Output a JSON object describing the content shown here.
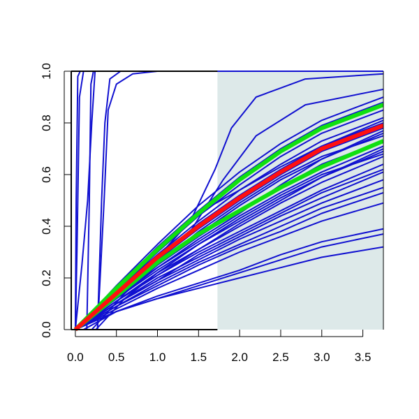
{
  "chart_data": {
    "type": "line",
    "title": "",
    "xlabel": "",
    "ylabel": "",
    "xlim": [
      -0.05,
      3.75
    ],
    "ylim": [
      0.0,
      1.0
    ],
    "x_ticks": [
      "0.0",
      "0.5",
      "1.0",
      "1.5",
      "2.0",
      "2.5",
      "3.0",
      "3.5"
    ],
    "y_ticks": [
      "0.0",
      "0.2",
      "0.4",
      "0.6",
      "0.8",
      "1.0"
    ],
    "grid": false,
    "legend": "none",
    "shaded_region": {
      "x_start": 1.73,
      "x_end": 3.75,
      "color": "#dde9e9"
    },
    "colors": {
      "individual": "#1010d0",
      "median": "#ff1010",
      "band": "#10e010"
    },
    "band_curves": {
      "description": "two green bounding curves and a red central curve",
      "lower": {
        "name": "",
        "points": [
          [
            0,
            0
          ],
          [
            0.5,
            0.13
          ],
          [
            1.0,
            0.26
          ],
          [
            1.5,
            0.37
          ],
          [
            2.0,
            0.46
          ],
          [
            2.5,
            0.55
          ],
          [
            3.0,
            0.63
          ],
          [
            3.75,
            0.73
          ]
        ]
      },
      "central": {
        "name": "",
        "points": [
          [
            0,
            0
          ],
          [
            0.5,
            0.14
          ],
          [
            1.0,
            0.28
          ],
          [
            1.5,
            0.4
          ],
          [
            2.0,
            0.51
          ],
          [
            2.5,
            0.61
          ],
          [
            3.0,
            0.7
          ],
          [
            3.75,
            0.79
          ]
        ]
      },
      "upper": {
        "name": "",
        "points": [
          [
            0,
            0
          ],
          [
            0.5,
            0.16
          ],
          [
            1.0,
            0.31
          ],
          [
            1.5,
            0.45
          ],
          [
            2.0,
            0.58
          ],
          [
            2.5,
            0.69
          ],
          [
            3.0,
            0.78
          ],
          [
            3.75,
            0.87
          ]
        ]
      }
    },
    "series": [
      {
        "points": [
          [
            0,
            0
          ],
          [
            0.01,
            0.5
          ],
          [
            0.03,
            0.98
          ],
          [
            0.06,
            1.0
          ],
          [
            3.75,
            1.0
          ]
        ]
      },
      {
        "points": [
          [
            0,
            0
          ],
          [
            0.02,
            0.3
          ],
          [
            0.05,
            0.9
          ],
          [
            0.1,
            1.0
          ],
          [
            3.75,
            1.0
          ]
        ]
      },
      {
        "points": [
          [
            0.14,
            0.0
          ],
          [
            0.17,
            0.5
          ],
          [
            0.19,
            0.95
          ],
          [
            0.22,
            1.0
          ],
          [
            3.75,
            1.0
          ]
        ]
      },
      {
        "points": [
          [
            0.0,
            0.0
          ],
          [
            0.08,
            0.25
          ],
          [
            0.15,
            0.5
          ],
          [
            0.2,
            0.8
          ],
          [
            0.24,
            1.0
          ],
          [
            3.75,
            1.0
          ]
        ]
      },
      {
        "points": [
          [
            0.27,
            0.0
          ],
          [
            0.32,
            0.5
          ],
          [
            0.36,
            0.8
          ],
          [
            0.42,
            0.97
          ],
          [
            0.55,
            1.0
          ],
          [
            3.75,
            1.0
          ]
        ]
      },
      {
        "points": [
          [
            0.27,
            0.0
          ],
          [
            0.35,
            0.5
          ],
          [
            0.4,
            0.85
          ],
          [
            0.5,
            0.95
          ],
          [
            0.7,
            0.99
          ],
          [
            1.0,
            1.0
          ],
          [
            3.75,
            1.0
          ]
        ]
      },
      {
        "points": [
          [
            0,
            0
          ],
          [
            0.5,
            0.14
          ],
          [
            1.0,
            0.28
          ],
          [
            1.4,
            0.42
          ],
          [
            1.7,
            0.62
          ],
          [
            1.9,
            0.78
          ],
          [
            2.2,
            0.9
          ],
          [
            2.8,
            0.97
          ],
          [
            3.75,
            0.99
          ]
        ]
      },
      {
        "points": [
          [
            0,
            0
          ],
          [
            0.5,
            0.13
          ],
          [
            1.0,
            0.26
          ],
          [
            1.4,
            0.38
          ],
          [
            1.8,
            0.58
          ],
          [
            2.2,
            0.75
          ],
          [
            2.8,
            0.87
          ],
          [
            3.75,
            0.93
          ]
        ]
      },
      {
        "points": [
          [
            0,
            0
          ],
          [
            0.5,
            0.17
          ],
          [
            1.0,
            0.33
          ],
          [
            1.5,
            0.48
          ],
          [
            2.0,
            0.61
          ],
          [
            2.5,
            0.72
          ],
          [
            3.0,
            0.81
          ],
          [
            3.75,
            0.9
          ]
        ]
      },
      {
        "points": [
          [
            0,
            0
          ],
          [
            0.5,
            0.16
          ],
          [
            1.0,
            0.32
          ],
          [
            1.5,
            0.46
          ],
          [
            2.0,
            0.59
          ],
          [
            2.5,
            0.7
          ],
          [
            3.0,
            0.79
          ],
          [
            3.75,
            0.88
          ]
        ]
      },
      {
        "points": [
          [
            0,
            0
          ],
          [
            0.5,
            0.15
          ],
          [
            1.0,
            0.3
          ],
          [
            1.5,
            0.44
          ],
          [
            2.0,
            0.56
          ],
          [
            2.5,
            0.67
          ],
          [
            3.0,
            0.76
          ],
          [
            3.75,
            0.85
          ]
        ]
      },
      {
        "points": [
          [
            0,
            0
          ],
          [
            0.5,
            0.15
          ],
          [
            1.0,
            0.29
          ],
          [
            1.5,
            0.42
          ],
          [
            2.0,
            0.54
          ],
          [
            2.5,
            0.64
          ],
          [
            3.0,
            0.73
          ],
          [
            3.75,
            0.82
          ]
        ]
      },
      {
        "points": [
          [
            0,
            0
          ],
          [
            0.5,
            0.14
          ],
          [
            1.0,
            0.28
          ],
          [
            1.5,
            0.41
          ],
          [
            2.0,
            0.52
          ],
          [
            2.5,
            0.62
          ],
          [
            3.0,
            0.71
          ],
          [
            3.75,
            0.8
          ]
        ]
      },
      {
        "points": [
          [
            0,
            0
          ],
          [
            0.5,
            0.14
          ],
          [
            1.0,
            0.27
          ],
          [
            1.5,
            0.39
          ],
          [
            2.0,
            0.5
          ],
          [
            2.5,
            0.6
          ],
          [
            3.0,
            0.69
          ],
          [
            3.75,
            0.78
          ]
        ]
      },
      {
        "points": [
          [
            0,
            0
          ],
          [
            0.5,
            0.13
          ],
          [
            1.0,
            0.26
          ],
          [
            1.5,
            0.37
          ],
          [
            2.0,
            0.48
          ],
          [
            2.5,
            0.58
          ],
          [
            3.0,
            0.66
          ],
          [
            3.75,
            0.76
          ]
        ]
      },
      {
        "points": [
          [
            0,
            0
          ],
          [
            0.5,
            0.13
          ],
          [
            1.0,
            0.25
          ],
          [
            1.5,
            0.36
          ],
          [
            2.0,
            0.46
          ],
          [
            2.5,
            0.55
          ],
          [
            3.0,
            0.64
          ],
          [
            3.75,
            0.73
          ]
        ]
      },
      {
        "points": [
          [
            0,
            0
          ],
          [
            0.5,
            0.12
          ],
          [
            1.0,
            0.24
          ],
          [
            1.5,
            0.34
          ],
          [
            2.0,
            0.44
          ],
          [
            2.5,
            0.53
          ],
          [
            3.0,
            0.61
          ],
          [
            3.75,
            0.71
          ]
        ]
      },
      {
        "points": [
          [
            0,
            0
          ],
          [
            0.5,
            0.12
          ],
          [
            1.0,
            0.23
          ],
          [
            1.5,
            0.33
          ],
          [
            2.0,
            0.42
          ],
          [
            2.5,
            0.51
          ],
          [
            3.0,
            0.59
          ],
          [
            3.75,
            0.69
          ]
        ]
      },
      {
        "points": [
          [
            0,
            0
          ],
          [
            0.5,
            0.11
          ],
          [
            1.0,
            0.22
          ],
          [
            1.5,
            0.31
          ],
          [
            2.0,
            0.4
          ],
          [
            2.5,
            0.49
          ],
          [
            3.0,
            0.57
          ],
          [
            3.75,
            0.67
          ]
        ]
      },
      {
        "points": [
          [
            0,
            0
          ],
          [
            0.5,
            0.11
          ],
          [
            1.0,
            0.21
          ],
          [
            1.5,
            0.3
          ],
          [
            2.0,
            0.38
          ],
          [
            2.5,
            0.46
          ],
          [
            3.0,
            0.54
          ],
          [
            3.75,
            0.64
          ]
        ]
      },
      {
        "points": [
          [
            0,
            0
          ],
          [
            0.5,
            0.1
          ],
          [
            1.0,
            0.2
          ],
          [
            1.5,
            0.28
          ],
          [
            2.0,
            0.36
          ],
          [
            2.5,
            0.44
          ],
          [
            3.0,
            0.51
          ],
          [
            3.75,
            0.61
          ]
        ]
      },
      {
        "points": [
          [
            0,
            0
          ],
          [
            0.5,
            0.1
          ],
          [
            1.0,
            0.19
          ],
          [
            1.5,
            0.27
          ],
          [
            2.0,
            0.35
          ],
          [
            2.5,
            0.42
          ],
          [
            3.0,
            0.49
          ],
          [
            3.75,
            0.58
          ]
        ]
      },
      {
        "points": [
          [
            0,
            0
          ],
          [
            0.5,
            0.09
          ],
          [
            1.0,
            0.18
          ],
          [
            1.5,
            0.26
          ],
          [
            2.0,
            0.33
          ],
          [
            2.5,
            0.4
          ],
          [
            3.0,
            0.47
          ],
          [
            3.75,
            0.55
          ]
        ]
      },
      {
        "points": [
          [
            0,
            0
          ],
          [
            0.5,
            0.09
          ],
          [
            1.0,
            0.17
          ],
          [
            1.5,
            0.25
          ],
          [
            2.0,
            0.32
          ],
          [
            2.5,
            0.38
          ],
          [
            3.0,
            0.45
          ],
          [
            3.75,
            0.53
          ]
        ]
      },
      {
        "points": [
          [
            0,
            0
          ],
          [
            0.5,
            0.08
          ],
          [
            1.0,
            0.16
          ],
          [
            1.5,
            0.23
          ],
          [
            2.0,
            0.3
          ],
          [
            2.5,
            0.36
          ],
          [
            3.0,
            0.42
          ],
          [
            3.75,
            0.49
          ]
        ]
      },
      {
        "points": [
          [
            0.1,
            0
          ],
          [
            0.5,
            0.07
          ],
          [
            1.0,
            0.12
          ],
          [
            1.5,
            0.16
          ],
          [
            2.0,
            0.2
          ],
          [
            2.5,
            0.24
          ],
          [
            3.0,
            0.28
          ],
          [
            3.75,
            0.32
          ]
        ]
      },
      {
        "points": [
          [
            0,
            0
          ],
          [
            0.5,
            0.07
          ],
          [
            1.0,
            0.12
          ],
          [
            1.5,
            0.17
          ],
          [
            2.0,
            0.22
          ],
          [
            2.5,
            0.27
          ],
          [
            3.0,
            0.32
          ],
          [
            3.75,
            0.37
          ]
        ]
      },
      {
        "points": [
          [
            0,
            0
          ],
          [
            0.5,
            0.07
          ],
          [
            1.0,
            0.13
          ],
          [
            1.5,
            0.18
          ],
          [
            2.0,
            0.23
          ],
          [
            2.5,
            0.29
          ],
          [
            3.0,
            0.34
          ],
          [
            3.75,
            0.39
          ]
        ]
      },
      {
        "points": [
          [
            0.25,
            0
          ],
          [
            0.6,
            0.12
          ],
          [
            1.0,
            0.22
          ],
          [
            1.5,
            0.33
          ],
          [
            2.0,
            0.43
          ],
          [
            2.5,
            0.52
          ],
          [
            3.0,
            0.6
          ],
          [
            3.75,
            0.68
          ]
        ]
      },
      {
        "points": [
          [
            0.2,
            0
          ],
          [
            0.6,
            0.14
          ],
          [
            1.0,
            0.25
          ],
          [
            1.5,
            0.38
          ],
          [
            2.0,
            0.49
          ],
          [
            2.5,
            0.59
          ],
          [
            3.0,
            0.67
          ],
          [
            3.75,
            0.75
          ]
        ]
      },
      {
        "points": [
          [
            0,
            0
          ],
          [
            0.5,
            0.15
          ],
          [
            1.0,
            0.3
          ],
          [
            1.3,
            0.4
          ],
          [
            1.6,
            0.47
          ],
          [
            2.0,
            0.54
          ],
          [
            2.5,
            0.63
          ],
          [
            3.0,
            0.71
          ],
          [
            3.75,
            0.81
          ]
        ]
      },
      {
        "points": [
          [
            0,
            0
          ],
          [
            0.5,
            0.12
          ],
          [
            1.0,
            0.24
          ],
          [
            1.5,
            0.35
          ],
          [
            2.0,
            0.45
          ],
          [
            2.5,
            0.56
          ],
          [
            3.0,
            0.66
          ],
          [
            3.75,
            0.77
          ]
        ]
      },
      {
        "points": [
          [
            0,
            0
          ],
          [
            0.5,
            0.11
          ],
          [
            1.0,
            0.21
          ],
          [
            1.5,
            0.31
          ],
          [
            2.0,
            0.41
          ],
          [
            2.5,
            0.5
          ],
          [
            3.0,
            0.59
          ],
          [
            3.75,
            0.7
          ]
        ]
      },
      {
        "points": [
          [
            0,
            0
          ],
          [
            0.5,
            0.1
          ],
          [
            1.0,
            0.19
          ],
          [
            1.5,
            0.29
          ],
          [
            2.0,
            0.37
          ],
          [
            2.5,
            0.45
          ],
          [
            3.0,
            0.53
          ],
          [
            3.75,
            0.62
          ]
        ]
      }
    ]
  }
}
